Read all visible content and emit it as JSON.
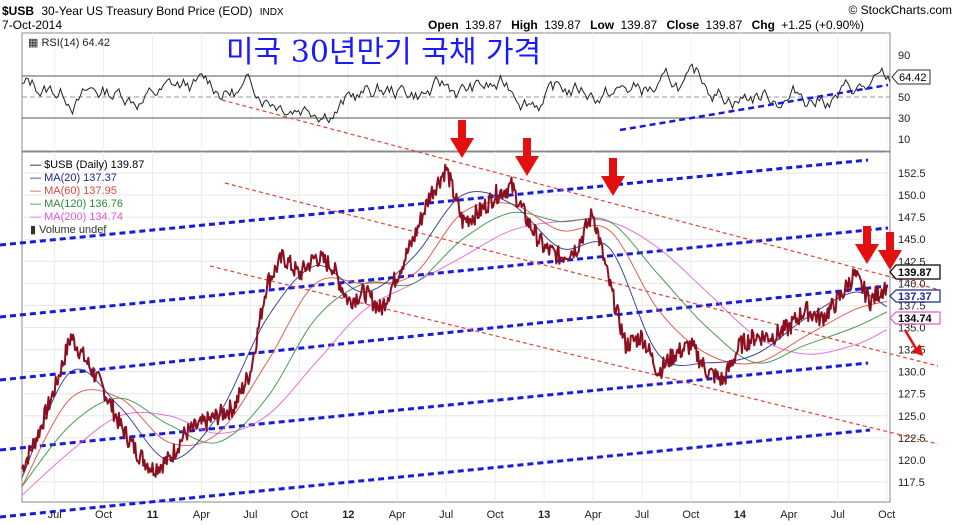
{
  "header": {
    "symbol": "$USB",
    "name": "30-Year US Treasury Bond Price (EOD)",
    "exchange": "INDX",
    "date": "7-Oct-2014",
    "open_label": "Open",
    "open": "139.87",
    "high_label": "High",
    "high": "139.87",
    "low_label": "Low",
    "low": "139.87",
    "close_label": "Close",
    "close": "139.87",
    "chg_label": "Chg",
    "chg": "+1.25 (+0.90%)",
    "credit": "© StockCharts.com"
  },
  "overlay_title": "미국 30년만기 국채 가격",
  "rsi": {
    "label": "RSI(14) 64.42",
    "value_tag": "64.42",
    "ticks": [
      90,
      70,
      50,
      30,
      10
    ],
    "ylim": [
      0,
      100
    ],
    "guides": [
      70,
      50,
      30
    ]
  },
  "legend": {
    "price": "$USB (Daily) 139.87",
    "ma20": "MA(20) 137.37",
    "ma60": "MA(60) 137.95",
    "ma120": "MA(120) 136.76",
    "ma200": "MA(200) 134.74",
    "volume": "Volume undef"
  },
  "colors": {
    "price": "#8b0f1f",
    "ma20": "#1b2a8a",
    "ma60": "#d9483b",
    "ma120": "#2e8b3a",
    "ma200": "#e05ad8",
    "channel": "#1a1adb",
    "resistance": "#e0433a",
    "arrow": "#e41010"
  },
  "price_tags": {
    "close": "139.87",
    "ma20": "137.37",
    "ma200": "134.74"
  },
  "chart_data": {
    "type": "line",
    "title": "30-Year US Treasury Bond Price (EOD)",
    "ylim": [
      115,
      155
    ],
    "y_ticks": [
      "152.5",
      "150.0",
      "147.5",
      "145.0",
      "142.5",
      "140.0",
      "137.5",
      "135.0",
      "132.5",
      "130.0",
      "127.5",
      "125.0",
      "122.5",
      "120.0",
      "117.5"
    ],
    "x_ticks": [
      "Jul",
      "Oct",
      "11",
      "Apr",
      "Jul",
      "Oct",
      "12",
      "Apr",
      "Jul",
      "Oct",
      "13",
      "Apr",
      "Jul",
      "Oct",
      "14",
      "Apr",
      "Jul",
      "Oct"
    ],
    "x_range": [
      "2010-05",
      "2014-10"
    ],
    "grid": true,
    "legend_position": "top-left",
    "series": [
      {
        "name": "$USB (Daily)",
        "x": [
          "2010-05",
          "2010-06",
          "2010-07",
          "2010-08",
          "2010-09",
          "2010-10",
          "2010-11",
          "2010-12",
          "2011-01",
          "2011-02",
          "2011-03",
          "2011-04",
          "2011-05",
          "2011-06",
          "2011-07",
          "2011-08",
          "2011-09",
          "2011-10",
          "2011-11",
          "2011-12",
          "2012-01",
          "2012-02",
          "2012-03",
          "2012-04",
          "2012-05",
          "2012-06",
          "2012-07",
          "2012-08",
          "2012-09",
          "2012-10",
          "2012-11",
          "2012-12",
          "2013-01",
          "2013-02",
          "2013-03",
          "2013-04",
          "2013-05",
          "2013-06",
          "2013-07",
          "2013-08",
          "2013-09",
          "2013-10",
          "2013-11",
          "2013-12",
          "2014-01",
          "2014-02",
          "2014-03",
          "2014-04",
          "2014-05",
          "2014-06",
          "2014-07",
          "2014-08",
          "2014-09",
          "2014-10"
        ],
        "values": [
          119,
          123,
          128,
          134,
          131,
          128,
          124,
          121,
          119,
          120,
          123,
          124,
          125,
          126,
          130,
          140,
          143,
          141,
          143,
          142,
          138,
          139,
          137,
          141,
          145,
          150,
          153,
          147,
          148,
          150,
          151,
          147,
          144,
          143,
          144,
          148,
          140,
          133,
          134,
          130,
          132,
          133,
          130,
          129,
          133,
          134,
          134,
          135,
          137,
          136,
          138,
          141,
          138,
          139.87
        ]
      },
      {
        "name": "MA(20)",
        "x": [
          "2010-05",
          "2010-08",
          "2010-11",
          "2011-02",
          "2011-05",
          "2011-08",
          "2011-11",
          "2012-02",
          "2012-05",
          "2012-08",
          "2012-11",
          "2013-02",
          "2013-05",
          "2013-08",
          "2013-11",
          "2014-02",
          "2014-05",
          "2014-08",
          "2014-10"
        ],
        "values": [
          118,
          130,
          126,
          120,
          125,
          136,
          142,
          139,
          143,
          150,
          149,
          144,
          144,
          132,
          131,
          132,
          136,
          139,
          137.37
        ]
      },
      {
        "name": "MA(60)",
        "x": [
          "2010-05",
          "2010-08",
          "2010-11",
          "2011-02",
          "2011-05",
          "2011-08",
          "2011-11",
          "2012-02",
          "2012-05",
          "2012-08",
          "2012-11",
          "2013-02",
          "2013-05",
          "2013-08",
          "2013-11",
          "2014-02",
          "2014-05",
          "2014-08",
          "2014-10"
        ],
        "values": [
          117,
          127,
          127,
          122,
          123,
          131,
          140,
          140,
          141,
          148,
          149,
          146,
          146,
          137,
          132,
          131,
          134,
          137,
          137.95
        ]
      },
      {
        "name": "MA(120)",
        "x": [
          "2010-05",
          "2010-08",
          "2010-11",
          "2011-02",
          "2011-05",
          "2011-08",
          "2011-11",
          "2012-02",
          "2012-05",
          "2012-08",
          "2012-11",
          "2013-02",
          "2013-05",
          "2013-08",
          "2013-11",
          "2014-02",
          "2014-05",
          "2014-08",
          "2014-10"
        ],
        "values": [
          117,
          124,
          127,
          124,
          122,
          127,
          136,
          140,
          140,
          145,
          148,
          147,
          147,
          141,
          135,
          131,
          133,
          135,
          136.76
        ]
      },
      {
        "name": "MA(200)",
        "x": [
          "2010-05",
          "2010-08",
          "2010-11",
          "2011-02",
          "2011-05",
          "2011-08",
          "2011-11",
          "2012-02",
          "2012-05",
          "2012-08",
          "2012-11",
          "2013-02",
          "2013-05",
          "2013-08",
          "2013-11",
          "2014-02",
          "2014-05",
          "2014-08",
          "2014-10"
        ],
        "values": [
          116,
          121,
          125,
          125,
          123,
          125,
          131,
          137,
          140,
          143,
          146,
          147,
          147,
          144,
          139,
          134,
          132,
          133,
          134.74
        ]
      }
    ],
    "annotations": [
      "channel lines (blue dashed)",
      "resistance lines (red dashed)",
      "downward arrows at peaks"
    ]
  }
}
